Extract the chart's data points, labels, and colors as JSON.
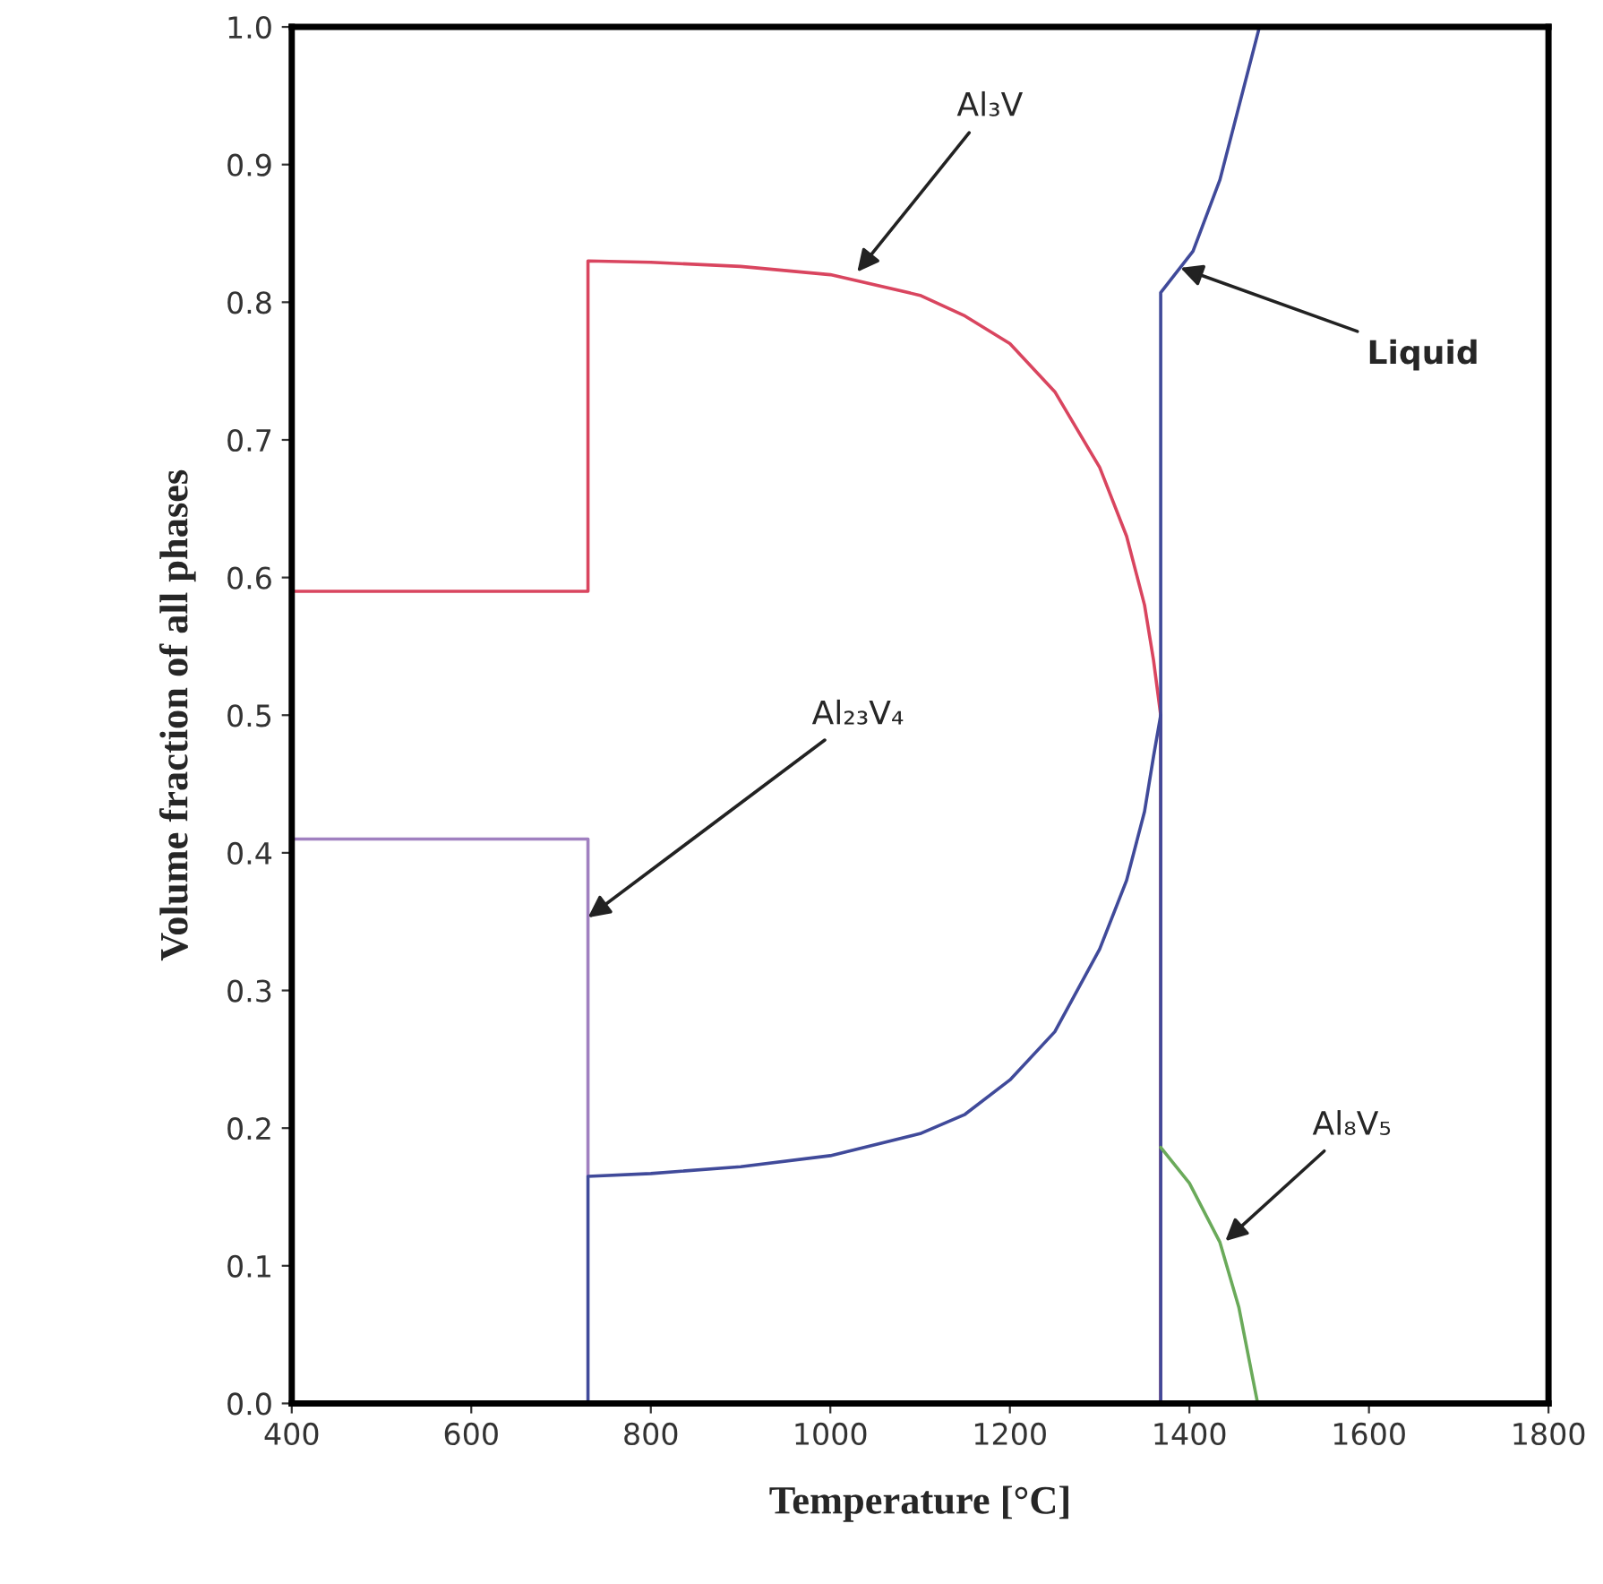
{
  "chart_data": {
    "type": "line",
    "xlabel": "Temperature [°C]",
    "ylabel": "Volume fraction of all phases",
    "xlim": [
      400,
      1800
    ],
    "ylim": [
      0,
      1.0
    ],
    "xticks": [
      400,
      600,
      800,
      1000,
      1200,
      1400,
      1600,
      1800
    ],
    "yticks": [
      {
        "value": 0,
        "label": "0.0"
      },
      0.1,
      0.2,
      0.3,
      0.4,
      0.5,
      0.6,
      0.7,
      0.8,
      0.9,
      {
        "value": 1,
        "label": "1.0"
      }
    ],
    "grid": false,
    "legend": false,
    "marker": "none",
    "line_style": "solid",
    "series": [
      {
        "color": "#d9455f",
        "x": [
          400,
          730,
          730,
          800,
          900,
          1000,
          1100,
          1150,
          1200,
          1250,
          1300,
          1330,
          1350,
          1360,
          1368,
          1368
        ],
        "values": [
          0.59,
          0.59,
          0.83,
          0.829,
          0.826,
          0.82,
          0.805,
          0.79,
          0.77,
          0.735,
          0.68,
          0.63,
          0.58,
          0.54,
          0.5,
          0
        ]
      },
      {
        "color": "#a080c0",
        "x": [
          400,
          730,
          730
        ],
        "values": [
          0.41,
          0.41,
          0.165
        ]
      },
      {
        "color": "#404a9a",
        "x": [
          730,
          730,
          800,
          900,
          1000,
          1100,
          1150,
          1200,
          1250,
          1300,
          1330,
          1350,
          1360,
          1368
        ],
        "values": [
          0,
          0.165,
          0.167,
          0.172,
          0.18,
          0.196,
          0.21,
          0.235,
          0.27,
          0.33,
          0.38,
          0.43,
          0.47,
          0.5
        ]
      },
      {
        "color": "#404a9a",
        "x": [
          1368,
          1368,
          1404,
          1434,
          1478
        ],
        "values": [
          0,
          0.807,
          0.837,
          0.889,
          1.0
        ]
      },
      {
        "color": "#6aaa5a",
        "x": [
          1368,
          1400,
          1434,
          1455,
          1476
        ],
        "values": [
          0.186,
          0.16,
          0.117,
          0.07,
          0
        ]
      }
    ],
    "annotations": [
      {
        "text": "Al₃V",
        "x": 1030,
        "y": 0.822
      },
      {
        "text": "Al₂₃V₄",
        "x": 730,
        "y": 0.353
      },
      {
        "text": "Liquid",
        "x": 1390,
        "y": 0.825
      },
      {
        "text": "Al₈V₅",
        "x": 1440,
        "y": 0.118
      }
    ]
  }
}
